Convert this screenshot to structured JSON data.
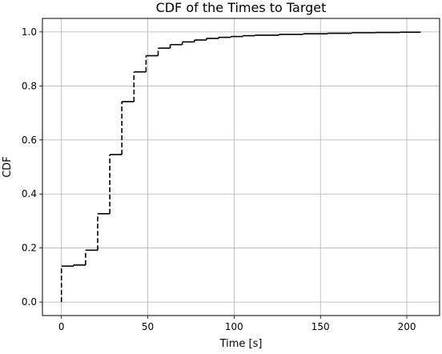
{
  "chart_data": {
    "type": "line",
    "title": "CDF of the Times to Target",
    "xlabel": "Time [s]",
    "ylabel": "CDF",
    "xlim": [
      -11,
      219
    ],
    "ylim": [
      -0.05,
      1.05
    ],
    "xticks": [
      0,
      50,
      100,
      150,
      200
    ],
    "yticks": [
      0.0,
      0.2,
      0.4,
      0.6,
      0.8,
      1.0
    ],
    "xtick_labels": [
      "0",
      "50",
      "100",
      "150",
      "200"
    ],
    "ytick_labels": [
      "0.0",
      "0.2",
      "0.4",
      "0.6",
      "0.8",
      "1.0"
    ],
    "grid": true,
    "step": "post",
    "series": [
      {
        "color": "#000000",
        "style": "horizontal solid, vertical dashed",
        "x": [
          0,
          7,
          14,
          21,
          28,
          35,
          42,
          49,
          56,
          63,
          70,
          77,
          84,
          91,
          98,
          105,
          112,
          126,
          140,
          154,
          168,
          182,
          196,
          208
        ],
        "y": [
          0.133,
          0.137,
          0.192,
          0.327,
          0.546,
          0.742,
          0.852,
          0.912,
          0.94,
          0.953,
          0.963,
          0.97,
          0.976,
          0.98,
          0.983,
          0.986,
          0.988,
          0.991,
          0.993,
          0.995,
          0.997,
          0.998,
          0.999,
          1.0
        ]
      }
    ]
  }
}
